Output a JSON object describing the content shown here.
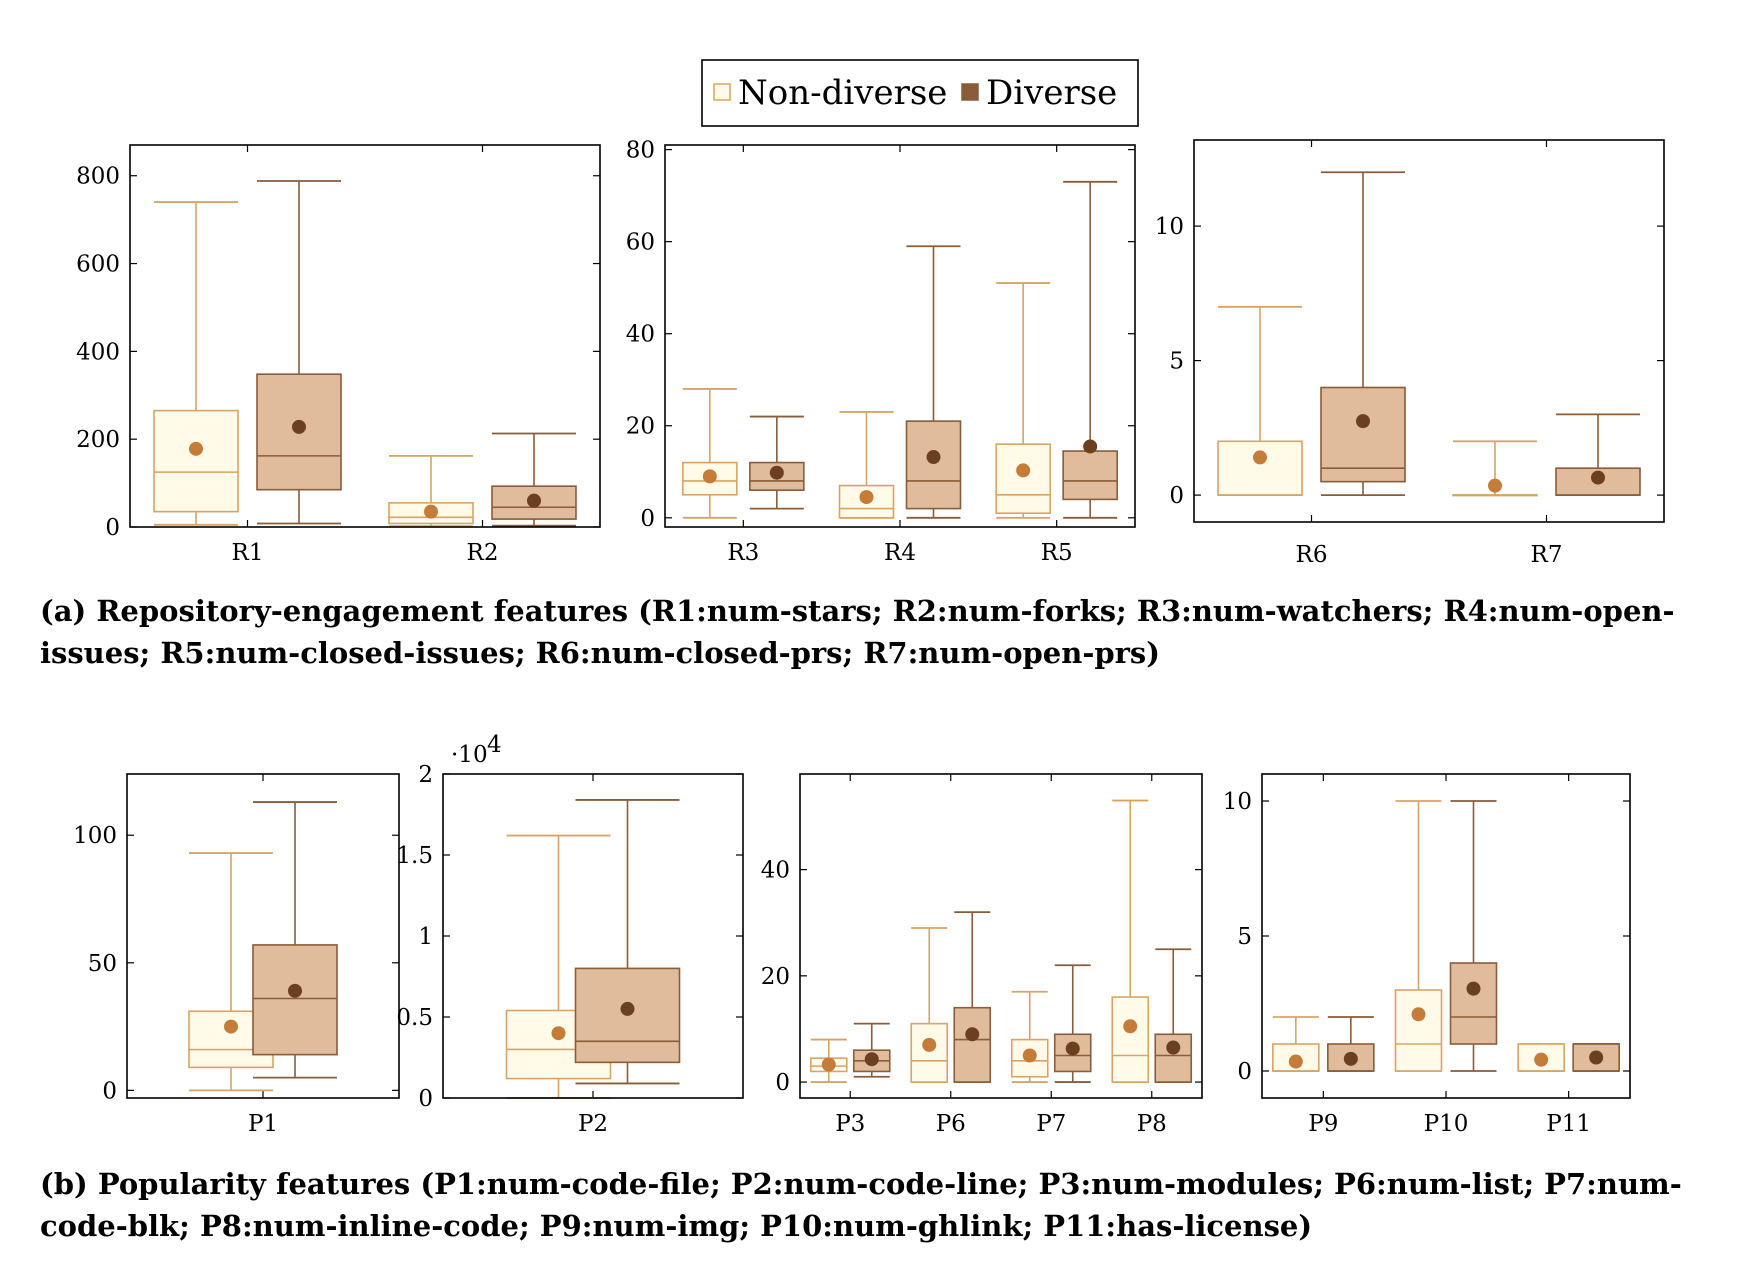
{
  "colors": {
    "non_diverse_fill": "#fffbe8",
    "non_diverse_stroke": "#d9a461",
    "non_diverse_mean": "#c47c38",
    "diverse_fill": "#e0bc9c",
    "diverse_stroke": "#8a5c38",
    "diverse_mean": "#6b4020"
  },
  "legend": {
    "non_diverse": "Non-diverse",
    "diverse": "Diverse"
  },
  "captions": {
    "a": "(a) Repository-engagement features (R1:num-stars; R2:num-forks; R3:num-watchers; R4:num-open-issues; R5:num-closed-issues; R6:num-closed-prs; R7:num-open-prs)",
    "b": "(b) Popularity features (P1:num-code-file; P2:num-code-line; P3:num-modules; P6:num-list; P7:num-code-blk; P8:num-inline-code; P9:num-img; P10:num-ghlink; P11:has-license)"
  },
  "chart_data": [
    {
      "type": "box",
      "ylim": [
        0,
        870
      ],
      "yticks": [
        0,
        200,
        400,
        600,
        800
      ],
      "categories": [
        "R1",
        "R2"
      ],
      "series": [
        {
          "name": "Non-diverse",
          "boxes": [
            {
              "min": 5,
              "q1": 35,
              "median": 125,
              "q3": 265,
              "max": 740,
              "mean": 178
            },
            {
              "min": 2,
              "q1": 8,
              "median": 22,
              "q3": 55,
              "max": 162,
              "mean": 35
            }
          ]
        },
        {
          "name": "Diverse",
          "boxes": [
            {
              "min": 8,
              "q1": 85,
              "median": 162,
              "q3": 348,
              "max": 788,
              "mean": 228
            },
            {
              "min": 3,
              "q1": 18,
              "median": 45,
              "q3": 93,
              "max": 213,
              "mean": 60
            }
          ]
        }
      ]
    },
    {
      "type": "box",
      "ylim": [
        -2,
        81
      ],
      "yticks": [
        0,
        20,
        40,
        60,
        80
      ],
      "categories": [
        "R3",
        "R4",
        "R5"
      ],
      "series": [
        {
          "name": "Non-diverse",
          "boxes": [
            {
              "min": 0,
              "q1": 5,
              "median": 8,
              "q3": 12,
              "max": 28,
              "mean": 9
            },
            {
              "min": 0,
              "q1": 0,
              "median": 2,
              "q3": 7,
              "max": 23,
              "mean": 4.5
            },
            {
              "min": 0,
              "q1": 1,
              "median": 5,
              "q3": 16,
              "max": 51,
              "mean": 10.3
            }
          ]
        },
        {
          "name": "Diverse",
          "boxes": [
            {
              "min": 2,
              "q1": 6,
              "median": 8,
              "q3": 12,
              "max": 22,
              "mean": 9.8
            },
            {
              "min": 0,
              "q1": 2,
              "median": 8,
              "q3": 21,
              "max": 59,
              "mean": 13.2
            },
            {
              "min": 0,
              "q1": 4,
              "median": 8,
              "q3": 14.5,
              "max": 73,
              "mean": 15.5
            }
          ]
        }
      ]
    },
    {
      "type": "box",
      "ylim": [
        -1,
        13.2
      ],
      "yticks": [
        0,
        5,
        10
      ],
      "categories": [
        "R6",
        "R7"
      ],
      "series": [
        {
          "name": "Non-diverse",
          "boxes": [
            {
              "min": 0,
              "q1": 0,
              "median": 0,
              "q3": 2,
              "max": 7,
              "mean": 1.4
            },
            {
              "min": 0,
              "q1": 0,
              "median": 0,
              "q3": 0,
              "max": 2,
              "mean": 0.35
            }
          ]
        },
        {
          "name": "Diverse",
          "boxes": [
            {
              "min": 0,
              "q1": 0.5,
              "median": 1,
              "q3": 4,
              "max": 12,
              "mean": 2.75
            },
            {
              "min": 0,
              "q1": 0,
              "median": 0,
              "q3": 1,
              "max": 3,
              "mean": 0.65
            }
          ]
        }
      ]
    },
    {
      "type": "box",
      "ylim": [
        -3,
        124
      ],
      "yticks": [
        0,
        50,
        100
      ],
      "categories": [
        "P1"
      ],
      "series": [
        {
          "name": "Non-diverse",
          "boxes": [
            {
              "min": 0,
              "q1": 9,
              "median": 16,
              "q3": 31,
              "max": 93,
              "mean": 25
            }
          ]
        },
        {
          "name": "Diverse",
          "boxes": [
            {
              "min": 5,
              "q1": 14,
              "median": 36,
              "q3": 57,
              "max": 113,
              "mean": 39
            }
          ]
        }
      ]
    },
    {
      "type": "box",
      "ylim": [
        0,
        2
      ],
      "yticks": [
        0,
        0.5,
        1,
        1.5,
        2
      ],
      "ytick_labels": [
        "0",
        "0.5",
        "1",
        "1.5",
        "2"
      ],
      "scale_label": "·10",
      "scale_exp": "4",
      "categories": [
        "P2"
      ],
      "series": [
        {
          "name": "Non-diverse",
          "boxes": [
            {
              "min": 0,
              "q1": 0.12,
              "median": 0.3,
              "q3": 0.54,
              "max": 1.62,
              "mean": 0.4
            }
          ]
        },
        {
          "name": "Diverse",
          "boxes": [
            {
              "min": 0.09,
              "q1": 0.22,
              "median": 0.35,
              "q3": 0.8,
              "max": 1.84,
              "mean": 0.55
            }
          ]
        }
      ]
    },
    {
      "type": "box",
      "ylim": [
        -3,
        58
      ],
      "yticks": [
        0,
        20,
        40
      ],
      "categories": [
        "P3",
        "P6",
        "P7",
        "P8"
      ],
      "series": [
        {
          "name": "Non-diverse",
          "boxes": [
            {
              "min": 0,
              "q1": 2,
              "median": 3,
              "q3": 4.5,
              "max": 8,
              "mean": 3.3
            },
            {
              "min": 0,
              "q1": 0,
              "median": 4,
              "q3": 11,
              "max": 29,
              "mean": 7
            },
            {
              "min": 0,
              "q1": 1,
              "median": 4,
              "q3": 8,
              "max": 17,
              "mean": 5
            },
            {
              "min": 0,
              "q1": 0,
              "median": 5,
              "q3": 16,
              "max": 53,
              "mean": 10.5
            }
          ]
        },
        {
          "name": "Diverse",
          "boxes": [
            {
              "min": 1,
              "q1": 2,
              "median": 4,
              "q3": 6,
              "max": 11,
              "mean": 4.3
            },
            {
              "min": 0,
              "q1": 0,
              "median": 8,
              "q3": 14,
              "max": 32,
              "mean": 9
            },
            {
              "min": 0,
              "q1": 2,
              "median": 5,
              "q3": 9,
              "max": 22,
              "mean": 6.3
            },
            {
              "min": 0,
              "q1": 0,
              "median": 5,
              "q3": 9,
              "max": 25,
              "mean": 6.5
            }
          ]
        }
      ]
    },
    {
      "type": "box",
      "ylim": [
        -1,
        11
      ],
      "yticks": [
        0,
        5,
        10
      ],
      "categories": [
        "P9",
        "P10",
        "P11"
      ],
      "series": [
        {
          "name": "Non-diverse",
          "boxes": [
            {
              "min": 0,
              "q1": 0,
              "median": 0,
              "q3": 1,
              "max": 2,
              "mean": 0.35
            },
            {
              "min": 0,
              "q1": 0,
              "median": 1,
              "q3": 3,
              "max": 10,
              "mean": 2.1
            },
            {
              "min": 0,
              "q1": 0,
              "median": 0,
              "q3": 1,
              "max": 1,
              "mean": 0.42
            }
          ]
        },
        {
          "name": "Diverse",
          "boxes": [
            {
              "min": 0,
              "q1": 0,
              "median": 0,
              "q3": 1,
              "max": 2,
              "mean": 0.45
            },
            {
              "min": 0,
              "q1": 1,
              "median": 2,
              "q3": 4,
              "max": 10,
              "mean": 3.05
            },
            {
              "min": 0,
              "q1": 0,
              "median": 0,
              "q3": 1,
              "max": 1,
              "mean": 0.5
            }
          ]
        }
      ]
    }
  ]
}
